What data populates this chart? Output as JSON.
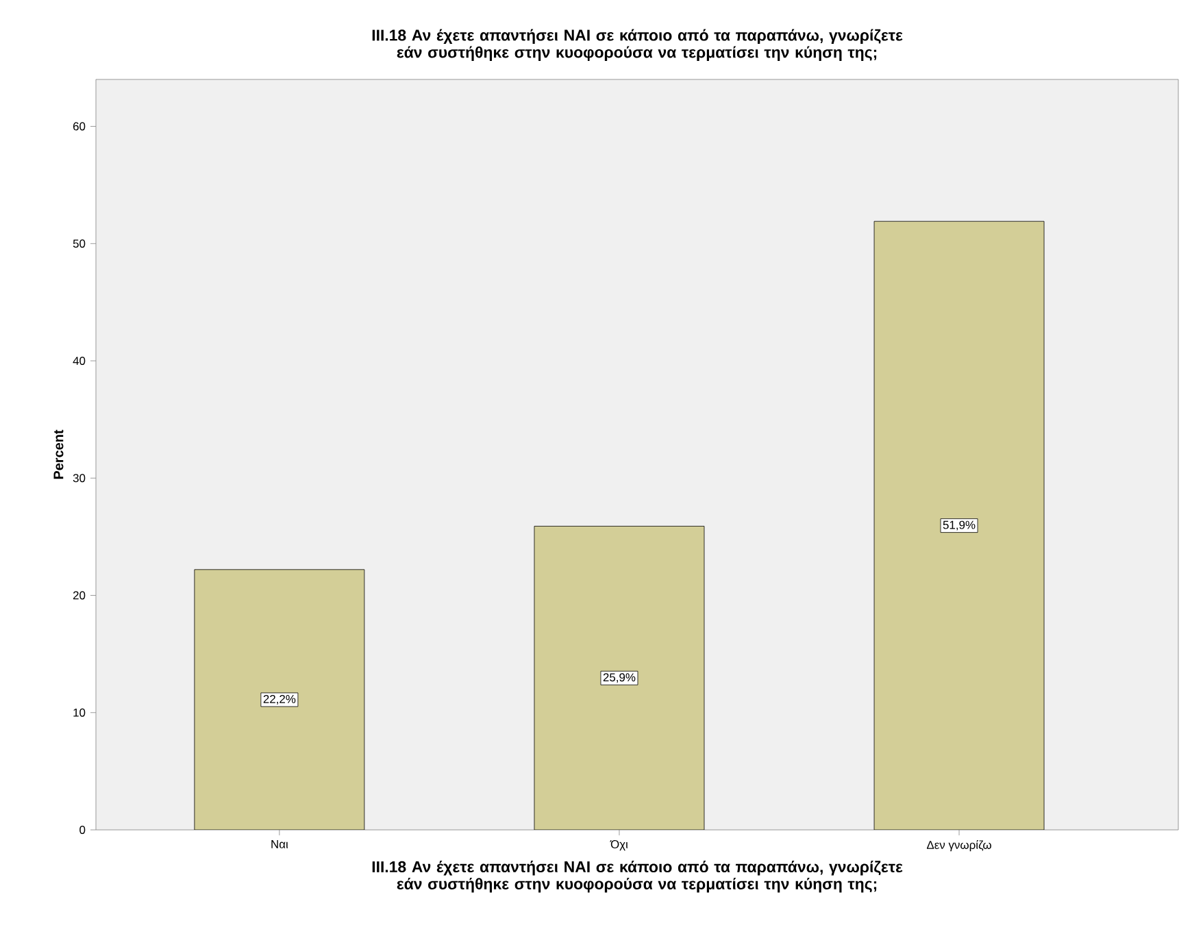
{
  "chart_data": {
    "type": "bar",
    "title": "III.18 Αν έχετε απαντήσει ΝΑΙ σε κάποιο από τα παραπάνω, γνωρίζετε εάν συστήθηκε στην κυοφορούσα να τερματίσει την κύηση της;",
    "xlabel": "III.18 Αν έχετε απαντήσει ΝΑΙ σε κάποιο από τα παραπάνω, γνωρίζετε εάν συστήθηκε στην κυοφορούσα να τερματίσει την κύηση της;",
    "ylabel": "Percent",
    "categories": [
      "Ναι",
      "Όχι",
      "Δεν γνωρίζω"
    ],
    "values": [
      22.2,
      25.9,
      51.9
    ],
    "value_labels": [
      "22,2%",
      "25,9%",
      "51,9%"
    ],
    "color": "#d3ce97",
    "ylim": [
      0,
      64
    ],
    "yticks": [
      0,
      10,
      20,
      30,
      40,
      50,
      60
    ]
  }
}
